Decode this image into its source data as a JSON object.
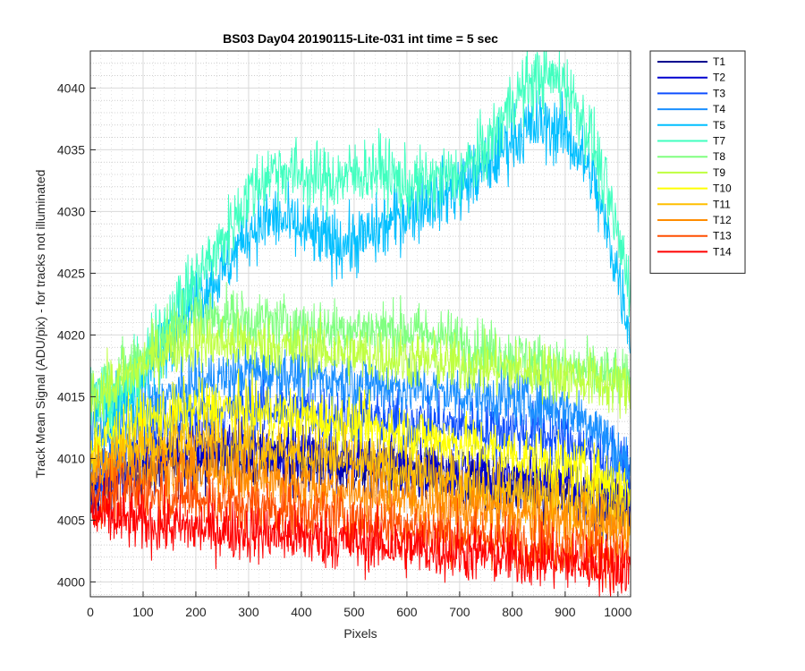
{
  "chart_data": {
    "type": "line",
    "title": "BS03 Day04 20190115-Lite-031 int time = 5 sec",
    "xlabel": "Pixels",
    "ylabel": "Track Mean Signal (ADU/pix) - for tracks not illuminated",
    "xlim": [
      0,
      1024
    ],
    "ylim": [
      3998.8,
      4043
    ],
    "xticks": [
      0,
      100,
      200,
      300,
      400,
      500,
      600,
      700,
      800,
      900,
      1000
    ],
    "yticks": [
      4000,
      4005,
      4010,
      4015,
      4020,
      4025,
      4030,
      4035,
      4040
    ],
    "grid": true,
    "minor_grid": true,
    "legend_position": "outside-top-right",
    "x": [
      0,
      50,
      100,
      150,
      200,
      250,
      300,
      350,
      400,
      450,
      500,
      550,
      600,
      650,
      700,
      750,
      800,
      850,
      900,
      950,
      1000,
      1024
    ],
    "series": [
      {
        "name": "T1",
        "color": "#00008f",
        "noise": 1.2,
        "values": [
          4007,
          4008.5,
          4009,
          4009.5,
          4010,
          4010,
          4010,
          4009.8,
          4009.7,
          4009.5,
          4009.3,
          4009,
          4008.8,
          4008.5,
          4008.2,
          4008,
          4007.7,
          4007.4,
          4007,
          4006.5,
          4006,
          4005.5
        ]
      },
      {
        "name": "T2",
        "color": "#0000cf",
        "noise": 1.2,
        "values": [
          4007.5,
          4009,
          4010,
          4010.5,
          4011,
          4011,
          4011,
          4010.8,
          4010.5,
          4010.2,
          4010,
          4009.7,
          4009.5,
          4009.2,
          4009,
          4008.7,
          4008.5,
          4008.2,
          4007.8,
          4007.3,
          4006.8,
          4006.3
        ]
      },
      {
        "name": "T3",
        "color": "#0f4fff",
        "noise": 1.2,
        "values": [
          4008.5,
          4010.5,
          4012,
          4013,
          4013.5,
          4013.8,
          4014,
          4014,
          4013.8,
          4013.6,
          4013.4,
          4013.2,
          4013,
          4012.8,
          4012.6,
          4012.4,
          4012.2,
          4012,
          4011.5,
          4010.5,
          4009.5,
          4008.5
        ]
      },
      {
        "name": "T4",
        "color": "#1a8fff",
        "noise": 1.2,
        "values": [
          4012,
          4012.5,
          4013.5,
          4015,
          4016,
          4016.5,
          4017,
          4017,
          4016.8,
          4016.5,
          4016.2,
          4016,
          4015.8,
          4015.5,
          4015.3,
          4015,
          4014.8,
          4014.5,
          4014,
          4013,
          4010.5,
          4009
        ]
      },
      {
        "name": "T5",
        "color": "#00bfff",
        "noise": 1.4,
        "values": [
          4015,
          4014,
          4016,
          4020,
          4023,
          4025,
          4028.5,
          4029.5,
          4028.5,
          4027.5,
          4027.5,
          4028.5,
          4030,
          4031,
          4032,
          4033.5,
          4036,
          4037,
          4036.5,
          4033,
          4025,
          4020
        ]
      },
      {
        "name": "T7",
        "color": "#40ffbf",
        "noise": 1.4,
        "values": [
          4015.5,
          4015,
          4017,
          4021.5,
          4024.5,
          4027.5,
          4031.5,
          4033.5,
          4033,
          4032.5,
          4033,
          4033.5,
          4032,
          4032.5,
          4033,
          4035,
          4039,
          4041,
          4040.5,
          4036,
          4028,
          4024
        ]
      },
      {
        "name": "T8",
        "color": "#80ff80",
        "noise": 1.2,
        "values": [
          4015.5,
          4016.5,
          4018.5,
          4020.5,
          4021.5,
          4021.5,
          4021.2,
          4021,
          4020.8,
          4020.5,
          4020.5,
          4020.5,
          4020.3,
          4020,
          4019.5,
          4018.8,
          4018.3,
          4017.8,
          4017.3,
          4017,
          4016.5,
          4016
        ]
      },
      {
        "name": "T9",
        "color": "#bfff40",
        "noise": 1.2,
        "values": [
          4015,
          4016,
          4017.5,
          4019,
          4019.5,
          4019.3,
          4019.2,
          4019,
          4018.8,
          4018.6,
          4018.4,
          4018.2,
          4018,
          4017.8,
          4017.6,
          4017.4,
          4017.2,
          4017,
          4016.7,
          4016.3,
          4015.8,
          4015.3
        ]
      },
      {
        "name": "T10",
        "color": "#ffff00",
        "noise": 1.2,
        "values": [
          4011,
          4012,
          4013,
          4013.5,
          4014,
          4014,
          4013.8,
          4013.5,
          4013.2,
          4013,
          4012.7,
          4012.3,
          4012,
          4011.6,
          4011.2,
          4010.8,
          4010.3,
          4009.8,
          4009.3,
          4008.7,
          4008,
          4007.5
        ]
      },
      {
        "name": "T11",
        "color": "#ffbf00",
        "noise": 1.2,
        "values": [
          4009.5,
          4010.5,
          4011,
          4011.2,
          4011.3,
          4011.2,
          4011,
          4010.7,
          4010.3,
          4010,
          4009.6,
          4009.2,
          4008.8,
          4008.4,
          4008,
          4007.6,
          4007.2,
          4006.8,
          4006.4,
          4006,
          4005.5,
          4005.2
        ]
      },
      {
        "name": "T12",
        "color": "#ff8c00",
        "noise": 1.2,
        "values": [
          4008.5,
          4009,
          4009.2,
          4009.2,
          4009,
          4008.8,
          4008.5,
          4008.2,
          4007.9,
          4007.6,
          4007.3,
          4007,
          4006.7,
          4006.4,
          4006.1,
          4005.8,
          4005.5,
          4005.2,
          4004.9,
          4004.6,
          4004.3,
          4004
        ]
      },
      {
        "name": "T13",
        "color": "#ff4f00",
        "noise": 1.2,
        "values": [
          4007,
          4007.2,
          4007.2,
          4007,
          4006.8,
          4006.5,
          4006.2,
          4006,
          4005.7,
          4005.4,
          4005.1,
          4004.8,
          4004.5,
          4004.2,
          4003.9,
          4003.6,
          4003.3,
          4003,
          4002.8,
          4002.5,
          4002.2,
          4002
        ]
      },
      {
        "name": "T14",
        "color": "#ff0000",
        "noise": 1.2,
        "values": [
          4005.5,
          4005,
          4004.8,
          4004.5,
          4004.3,
          4004.2,
          4004,
          4003.8,
          4003.6,
          4003.4,
          4003.2,
          4003,
          4002.8,
          4002.6,
          4002.4,
          4002.2,
          4002,
          4001.8,
          4001.6,
          4001.4,
          4001.2,
          4001
        ]
      }
    ]
  }
}
